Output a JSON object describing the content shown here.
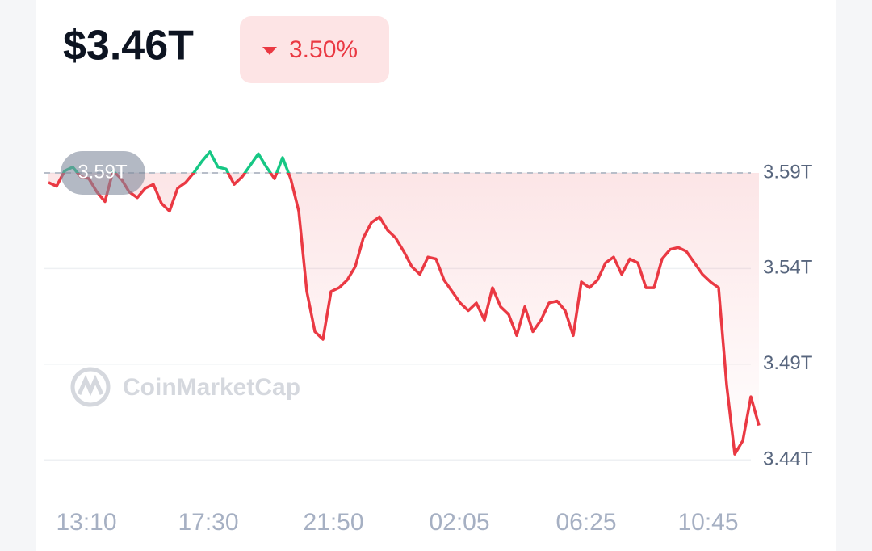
{
  "header": {
    "value": "$3.46T",
    "change": "3.50%"
  },
  "chart_data": {
    "type": "line",
    "watermark": "CoinMarketCap",
    "reference": {
      "value": 3.59,
      "label": "3.59T"
    },
    "values": [
      3.585,
      3.583,
      3.591,
      3.593,
      3.588,
      3.587,
      3.58,
      3.575,
      3.591,
      3.587,
      3.58,
      3.577,
      3.582,
      3.584,
      3.574,
      3.57,
      3.582,
      3.585,
      3.59,
      3.596,
      3.601,
      3.593,
      3.592,
      3.584,
      3.588,
      3.594,
      3.6,
      3.593,
      3.587,
      3.598,
      3.587,
      3.57,
      3.528,
      3.507,
      3.503,
      3.528,
      3.53,
      3.534,
      3.541,
      3.556,
      3.564,
      3.567,
      3.56,
      3.556,
      3.549,
      3.541,
      3.537,
      3.546,
      3.545,
      3.534,
      3.528,
      3.522,
      3.518,
      3.522,
      3.513,
      3.53,
      3.52,
      3.516,
      3.505,
      3.52,
      3.507,
      3.513,
      3.522,
      3.523,
      3.518,
      3.505,
      3.533,
      3.53,
      3.534,
      3.543,
      3.546,
      3.537,
      3.545,
      3.543,
      3.53,
      3.53,
      3.545,
      3.55,
      3.551,
      3.549,
      3.543,
      3.537,
      3.533,
      3.53,
      3.479,
      3.443,
      3.45,
      3.473,
      3.458
    ],
    "up_color": "#16c784",
    "down_color": "#ea3943",
    "xlim": [
      0,
      87.5
    ],
    "xticks": [
      {
        "value": 5.2,
        "label": "13:10"
      },
      {
        "value": 20.3,
        "label": "17:30"
      },
      {
        "value": 35.8,
        "label": "21:50"
      },
      {
        "value": 51.4,
        "label": "02:05"
      },
      {
        "value": 67.1,
        "label": "06:25"
      },
      {
        "value": 82.2,
        "label": "10:45"
      }
    ],
    "ylim": [
      3.427,
      3.617
    ],
    "yticks": [
      {
        "value": 3.44,
        "label": "3.44T"
      },
      {
        "value": 3.49,
        "label": "3.49T"
      },
      {
        "value": 3.54,
        "label": "3.54T"
      },
      {
        "value": 3.59,
        "label": "3.59T"
      }
    ],
    "grid": true
  }
}
